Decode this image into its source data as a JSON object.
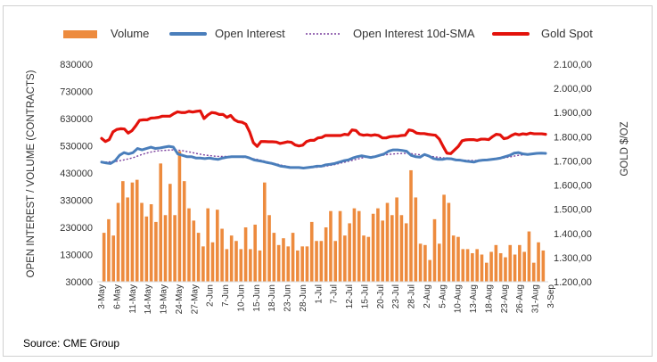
{
  "source": "Source: CME Group",
  "chart_data": {
    "type": "bar",
    "legend_position": "top",
    "grid": false,
    "ylabel": "OPEN INTEREST / VOLUME (CONTRACTS)",
    "y2label": "GOLD $/OZ",
    "ylim": [
      30000,
      830000
    ],
    "y2lim": [
      1200,
      2100
    ],
    "y_ticks": [
      "30000",
      "130000",
      "230000",
      "330000",
      "430000",
      "530000",
      "630000",
      "730000",
      "830000"
    ],
    "y2_ticks": [
      "1.200,00",
      "1.300,00",
      "1.400,00",
      "1.500,00",
      "1.600,00",
      "1.700,00",
      "1.800,00",
      "1.900,00",
      "2.000,00",
      "2.100,00"
    ],
    "x_ticks": [
      "3-May",
      "6-May",
      "11-May",
      "14-May",
      "19-May",
      "24-May",
      "27-May",
      "2-Jun",
      "7-Jun",
      "10-Jun",
      "15-Jun",
      "18-Jun",
      "23-Jun",
      "28-Jun",
      "1-Jul",
      "7-Jul",
      "12-Jul",
      "15-Jul",
      "20-Jul",
      "23-Jul",
      "28-Jul",
      "2-Aug",
      "5-Aug",
      "10-Aug",
      "13-Aug",
      "18-Aug",
      "23-Aug",
      "26-Aug",
      "31-Aug",
      "3-Sep"
    ],
    "series": [
      {
        "name": "Volume",
        "type": "bar",
        "color": "#ED8B3E",
        "values": [
          210000,
          260000,
          200000,
          320000,
          400000,
          340000,
          395000,
          405000,
          320000,
          270000,
          315000,
          250000,
          465000,
          275000,
          390000,
          275000,
          510000,
          400000,
          300000,
          255000,
          210000,
          160000,
          300000,
          175000,
          295000,
          225000,
          150000,
          200000,
          180000,
          150000,
          230000,
          150000,
          240000,
          145000,
          395000,
          275000,
          210000,
          165000,
          190000,
          160000,
          210000,
          145000,
          160000,
          160000,
          250000,
          180000,
          180000,
          230000,
          290000,
          180000,
          290000,
          200000,
          245000,
          300000,
          290000,
          200000,
          195000,
          280000,
          300000,
          255000,
          320000,
          275000,
          340000,
          275000,
          245000,
          440000,
          340000,
          170000,
          165000,
          110000,
          260000,
          170000,
          350000,
          320000,
          200000,
          195000,
          150000,
          150000,
          135000,
          150000,
          130000,
          100000,
          140000,
          165000,
          135000,
          120000,
          165000,
          130000,
          165000,
          140000,
          215000,
          100000,
          175000,
          145000
        ]
      },
      {
        "name": "Open Interest",
        "type": "line",
        "color": "#4A7EBB",
        "values": [
          470000,
          467000,
          465000,
          475000,
          495000,
          505000,
          500000,
          505000,
          520000,
          515000,
          520000,
          525000,
          520000,
          522000,
          525000,
          528000,
          525000,
          500000,
          495000,
          490000,
          490000,
          485000,
          485000,
          483000,
          485000,
          482000,
          480000,
          485000,
          488000,
          490000,
          490000,
          490000,
          490000,
          485000,
          478000,
          475000,
          472000,
          468000,
          465000,
          460000,
          455000,
          453000,
          450000,
          450000,
          450000,
          448000,
          450000,
          452000,
          455000,
          455000,
          460000,
          462000,
          465000,
          470000,
          475000,
          478000,
          485000,
          490000,
          493000,
          490000,
          487000,
          490000,
          495000,
          500000,
          510000,
          515000,
          515000,
          513000,
          510000,
          495000,
          490000,
          488000,
          498000,
          492000,
          483000,
          480000,
          480000,
          483000,
          482000,
          478000,
          477000,
          474000,
          472000,
          470000,
          475000,
          477000,
          478000,
          480000,
          482000,
          485000,
          490000,
          495000,
          503000,
          505000,
          500000,
          498000,
          500000,
          502000,
          503000,
          502000
        ]
      },
      {
        "name": "Open Interest 10d-SMA",
        "type": "line",
        "color": "#7A3F9D",
        "values": [
          470000,
          470000,
          471000,
          472000,
          475000,
          478000,
          482000,
          486000,
          492000,
          498000,
          503000,
          507000,
          510000,
          512000,
          513000,
          514000,
          515000,
          514000,
          512000,
          509000,
          506000,
          502000,
          499000,
          496000,
          494000,
          492000,
          491000,
          491000,
          491000,
          490000,
          489000,
          488000,
          487000,
          485000,
          482000,
          479000,
          475000,
          471000,
          467000,
          463000,
          459000,
          456000,
          453000,
          451000,
          449000,
          449000,
          449000,
          450000,
          451000,
          453000,
          455000,
          458000,
          461000,
          465000,
          469000,
          473000,
          477000,
          481000,
          485000,
          488000,
          490000,
          492000,
          494000,
          496000,
          498000,
          500000,
          501000,
          502000,
          502000,
          501000,
          499000,
          497000,
          495000,
          492000,
          490000,
          488000,
          486000,
          484000,
          482000,
          480000,
          478000,
          477000,
          476000,
          476000,
          476000,
          477000,
          478000,
          479000,
          481000,
          483000,
          486000,
          489000,
          492000,
          495000,
          497000,
          499000,
          500000,
          501000,
          502000,
          502000
        ]
      },
      {
        "name": "Gold Spot",
        "type": "line",
        "color": "#E3120B",
        "values": [
          1793,
          1780,
          1788,
          1820,
          1830,
          1833,
          1832,
          1815,
          1825,
          1845,
          1868,
          1870,
          1870,
          1877,
          1878,
          1880,
          1885,
          1885,
          1885,
          1895,
          1903,
          1900,
          1900,
          1905,
          1902,
          1905,
          1907,
          1875,
          1890,
          1900,
          1898,
          1892,
          1892,
          1880,
          1888,
          1870,
          1862,
          1860,
          1852,
          1820,
          1775,
          1760,
          1780,
          1780,
          1779,
          1779,
          1778,
          1772,
          1775,
          1779,
          1777,
          1766,
          1762,
          1765,
          1780,
          1785,
          1785,
          1795,
          1797,
          1805,
          1805,
          1805,
          1805,
          1805,
          1810,
          1808,
          1828,
          1826,
          1810,
          1806,
          1808,
          1805,
          1808,
          1805,
          1795,
          1795,
          1800,
          1802,
          1802,
          1805,
          1806,
          1828,
          1825,
          1815,
          1813,
          1813,
          1810,
          1808,
          1806,
          1790,
          1760,
          1732,
          1730,
          1745,
          1760,
          1783,
          1787,
          1788,
          1788,
          1785,
          1790,
          1790,
          1788,
          1800,
          1810,
          1808,
          1792,
          1795,
          1805,
          1812,
          1808,
          1812,
          1810,
          1815,
          1812,
          1812,
          1812,
          1810
        ]
      }
    ]
  }
}
